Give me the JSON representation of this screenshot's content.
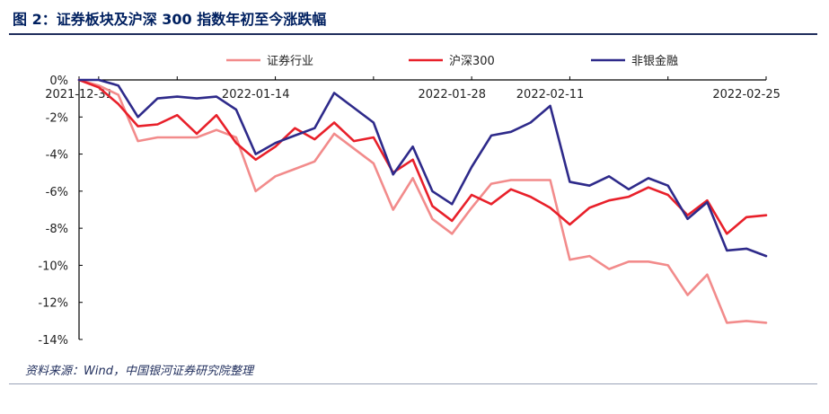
{
  "header": {
    "title": "图 2：证券板块及沪深 300 指数年初至今涨跌幅"
  },
  "footer": {
    "source": "资料来源：Wind，中国银河证券研究院整理"
  },
  "chart_data": {
    "type": "line",
    "ylim": [
      -14,
      0
    ],
    "y_ticks": [
      "0%",
      "-2%",
      "-4%",
      "-6%",
      "-8%",
      "-10%",
      "-12%",
      "-14%"
    ],
    "x_tick_labels": [
      "2021-12-31",
      "2022-01-14",
      "2022-01-28",
      "2022-02-11",
      "2022-02-25"
    ],
    "x": [
      "2021-12-31",
      "2022-01-04",
      "2022-01-05",
      "2022-01-06",
      "2022-01-07",
      "2022-01-10",
      "2022-01-11",
      "2022-01-12",
      "2022-01-13",
      "2022-01-14",
      "2022-01-17",
      "2022-01-18",
      "2022-01-19",
      "2022-01-20",
      "2022-01-21",
      "2022-01-24",
      "2022-01-25",
      "2022-01-26",
      "2022-01-27",
      "2022-01-28",
      "2022-02-07",
      "2022-02-08",
      "2022-02-09",
      "2022-02-10",
      "2022-02-11",
      "2022-02-14",
      "2022-02-15",
      "2022-02-16",
      "2022-02-17",
      "2022-02-18",
      "2022-02-21",
      "2022-02-22",
      "2022-02-23",
      "2022-02-24",
      "2022-02-25",
      "2022-02-28"
    ],
    "legend_position": "top",
    "grid": false,
    "series": [
      {
        "name": "证券行业",
        "color": "#f28b8b",
        "values": [
          0,
          -0.3,
          -0.8,
          -3.3,
          -3.1,
          -3.1,
          -3.1,
          -2.7,
          -3.1,
          -6.0,
          -5.2,
          -4.8,
          -4.4,
          -2.9,
          -3.7,
          -4.5,
          -7.0,
          -5.3,
          -7.5,
          -8.3,
          -6.9,
          -5.6,
          -5.4,
          -5.4,
          -5.4,
          -9.7,
          -9.5,
          -10.2,
          -9.8,
          -9.8,
          -10.0,
          -11.6,
          -10.5,
          -13.1,
          -13.0,
          -13.1
        ]
      },
      {
        "name": "沪深300",
        "color": "#e8202a",
        "values": [
          0,
          -0.4,
          -1.3,
          -2.5,
          -2.4,
          -1.9,
          -2.9,
          -1.9,
          -3.4,
          -4.3,
          -3.6,
          -2.6,
          -3.2,
          -2.3,
          -3.3,
          -3.1,
          -5.0,
          -4.3,
          -6.8,
          -7.6,
          -6.2,
          -6.7,
          -5.9,
          -6.3,
          -6.9,
          -7.8,
          -6.9,
          -6.5,
          -6.3,
          -5.8,
          -6.2,
          -7.3,
          -6.5,
          -8.3,
          -7.4,
          -7.3
        ]
      },
      {
        "name": "非银金融",
        "color": "#2e2a8a",
        "values": [
          0,
          0,
          -0.3,
          -2.0,
          -1.0,
          -0.9,
          -1.0,
          -0.9,
          -1.6,
          -4.0,
          -3.4,
          -3.0,
          -2.6,
          -0.7,
          -1.5,
          -2.3,
          -5.1,
          -3.6,
          -6.0,
          -6.7,
          -4.7,
          -3.0,
          -2.8,
          -2.3,
          -1.4,
          -5.5,
          -5.7,
          -5.2,
          -5.9,
          -5.3,
          -5.7,
          -7.5,
          -6.6,
          -9.2,
          -9.1,
          -9.5
        ]
      }
    ]
  }
}
